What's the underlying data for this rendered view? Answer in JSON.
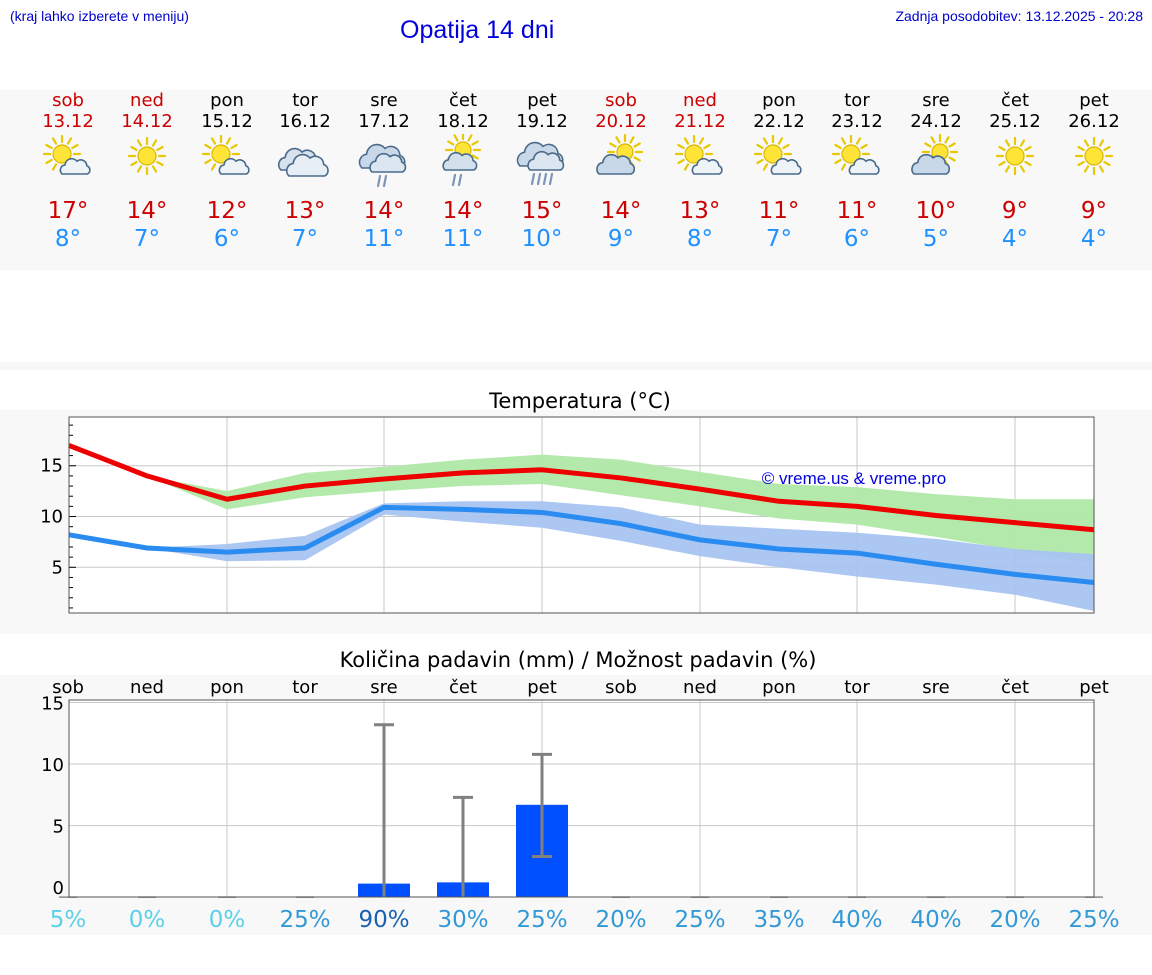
{
  "header": {
    "hint": "(kraj lahko izberete v meniju)",
    "title": "Opatija 14 dni",
    "updated": "Zadnja posodobitev: 13.12.2025 - 20:28"
  },
  "days": [
    {
      "name": "sob",
      "date": "13.12",
      "weekend": true,
      "icon": "sun-cloud-icon",
      "tmax": "17°",
      "tmin": "8°"
    },
    {
      "name": "ned",
      "date": "14.12",
      "weekend": true,
      "icon": "sun-icon",
      "tmax": "14°",
      "tmin": "7°"
    },
    {
      "name": "pon",
      "date": "15.12",
      "weekend": false,
      "icon": "sun-cloud-icon",
      "tmax": "12°",
      "tmin": "6°"
    },
    {
      "name": "tor",
      "date": "16.12",
      "weekend": false,
      "icon": "cloudy-icon",
      "tmax": "13°",
      "tmin": "7°"
    },
    {
      "name": "sre",
      "date": "17.12",
      "weekend": false,
      "icon": "cloud-rain-icon",
      "tmax": "14°",
      "tmin": "11°"
    },
    {
      "name": "čet",
      "date": "18.12",
      "weekend": false,
      "icon": "sun-cloud-rain-icon",
      "tmax": "14°",
      "tmin": "11°"
    },
    {
      "name": "pet",
      "date": "19.12",
      "weekend": false,
      "icon": "cloud-heavy-rain-icon",
      "tmax": "15°",
      "tmin": "10°"
    },
    {
      "name": "sob",
      "date": "20.12",
      "weekend": true,
      "icon": "cloud-sun-icon",
      "tmax": "14°",
      "tmin": "9°"
    },
    {
      "name": "ned",
      "date": "21.12",
      "weekend": true,
      "icon": "sun-cloud-icon",
      "tmax": "13°",
      "tmin": "8°"
    },
    {
      "name": "pon",
      "date": "22.12",
      "weekend": false,
      "icon": "sun-cloud-icon",
      "tmax": "11°",
      "tmin": "7°"
    },
    {
      "name": "tor",
      "date": "23.12",
      "weekend": false,
      "icon": "sun-cloud-icon",
      "tmax": "11°",
      "tmin": "6°"
    },
    {
      "name": "sre",
      "date": "24.12",
      "weekend": false,
      "icon": "cloud-sun-icon",
      "tmax": "10°",
      "tmin": "5°"
    },
    {
      "name": "čet",
      "date": "25.12",
      "weekend": false,
      "icon": "sun-icon",
      "tmax": "9°",
      "tmin": "4°"
    },
    {
      "name": "pet",
      "date": "26.12",
      "weekend": false,
      "icon": "sun-icon",
      "tmax": "9°",
      "tmin": "4°"
    }
  ],
  "colors": {
    "max_line": "#ee0000",
    "max_band": "#b0e8a8",
    "min_line": "#2a8cf0",
    "min_band": "#a8c4f0",
    "precip_bar": "#0050ff",
    "error_bar": "#808080",
    "weekend": "#cc0000",
    "min_text": "#1e90ff"
  },
  "chart_data": [
    {
      "type": "line",
      "title": "Temperatura (°C)",
      "watermark": "© vreme.us & vreme.pro",
      "x": [
        0,
        1,
        2,
        3,
        4,
        5,
        6,
        7,
        8,
        9,
        10,
        11,
        12,
        13
      ],
      "ylim": [
        0.5,
        19.8
      ],
      "yticks": [
        5,
        10,
        15
      ],
      "series": [
        {
          "name": "max",
          "values": [
            17,
            14,
            11.7,
            13,
            13.7,
            14.3,
            14.6,
            13.8,
            12.7,
            11.5,
            11,
            10.1,
            9.4,
            8.7
          ],
          "band_low": [
            null,
            14,
            10.7,
            11.9,
            12.5,
            13,
            13.2,
            12.1,
            11,
            9.8,
            9.2,
            8,
            6.7,
            5.4
          ],
          "band_high": [
            null,
            14,
            12.5,
            14.3,
            14.9,
            15.6,
            16.1,
            15.6,
            14.4,
            13.2,
            12.9,
            12.2,
            11.7,
            11.7
          ]
        },
        {
          "name": "min",
          "values": [
            8.2,
            6.9,
            6.5,
            6.9,
            10.9,
            10.7,
            10.4,
            9.3,
            7.7,
            6.8,
            6.4,
            5.3,
            4.3,
            3.5
          ],
          "band_low": [
            null,
            6.9,
            5.6,
            5.7,
            10.2,
            9.5,
            8.9,
            7.6,
            6.1,
            5,
            4.1,
            3.3,
            2.3,
            0.7
          ],
          "band_high": [
            null,
            6.9,
            7.3,
            8.1,
            11.3,
            11.5,
            11.5,
            10.9,
            9.2,
            8.8,
            8.4,
            7.8,
            6.8,
            6.3
          ]
        }
      ]
    },
    {
      "type": "bar",
      "title": "Količina padavin (mm) / Možnost padavin (%)",
      "categories": [
        "sob",
        "ned",
        "pon",
        "tor",
        "sre",
        "čet",
        "pet",
        "sob",
        "ned",
        "pon",
        "tor",
        "sre",
        "čet",
        "pet"
      ],
      "values": [
        0,
        0,
        0,
        0,
        1.1,
        1.2,
        7.5,
        0,
        0,
        0,
        0,
        0,
        0,
        0
      ],
      "error_low": [
        null,
        null,
        null,
        null,
        0,
        0,
        3.3,
        null,
        null,
        null,
        null,
        null,
        null,
        null
      ],
      "error_high": [
        null,
        null,
        null,
        null,
        14,
        8.1,
        11.6,
        null,
        null,
        null,
        null,
        null,
        null,
        null
      ],
      "probability": [
        "5%",
        "0%",
        "0%",
        "25%",
        "90%",
        "30%",
        "25%",
        "20%",
        "25%",
        "35%",
        "40%",
        "40%",
        "20%",
        "25%"
      ],
      "probability_colors": [
        "#5bd0e8",
        "#5bd0e8",
        "#5bd0e8",
        "#3399d6",
        "#1a62b0",
        "#3399d6",
        "#3399d6",
        "#3399d6",
        "#3399d6",
        "#3399d6",
        "#3399d6",
        "#3399d6",
        "#3399d6",
        "#3399d6"
      ],
      "ylim": [
        -0.8,
        15.2
      ],
      "yticks": [
        0,
        5,
        10,
        15
      ]
    }
  ]
}
